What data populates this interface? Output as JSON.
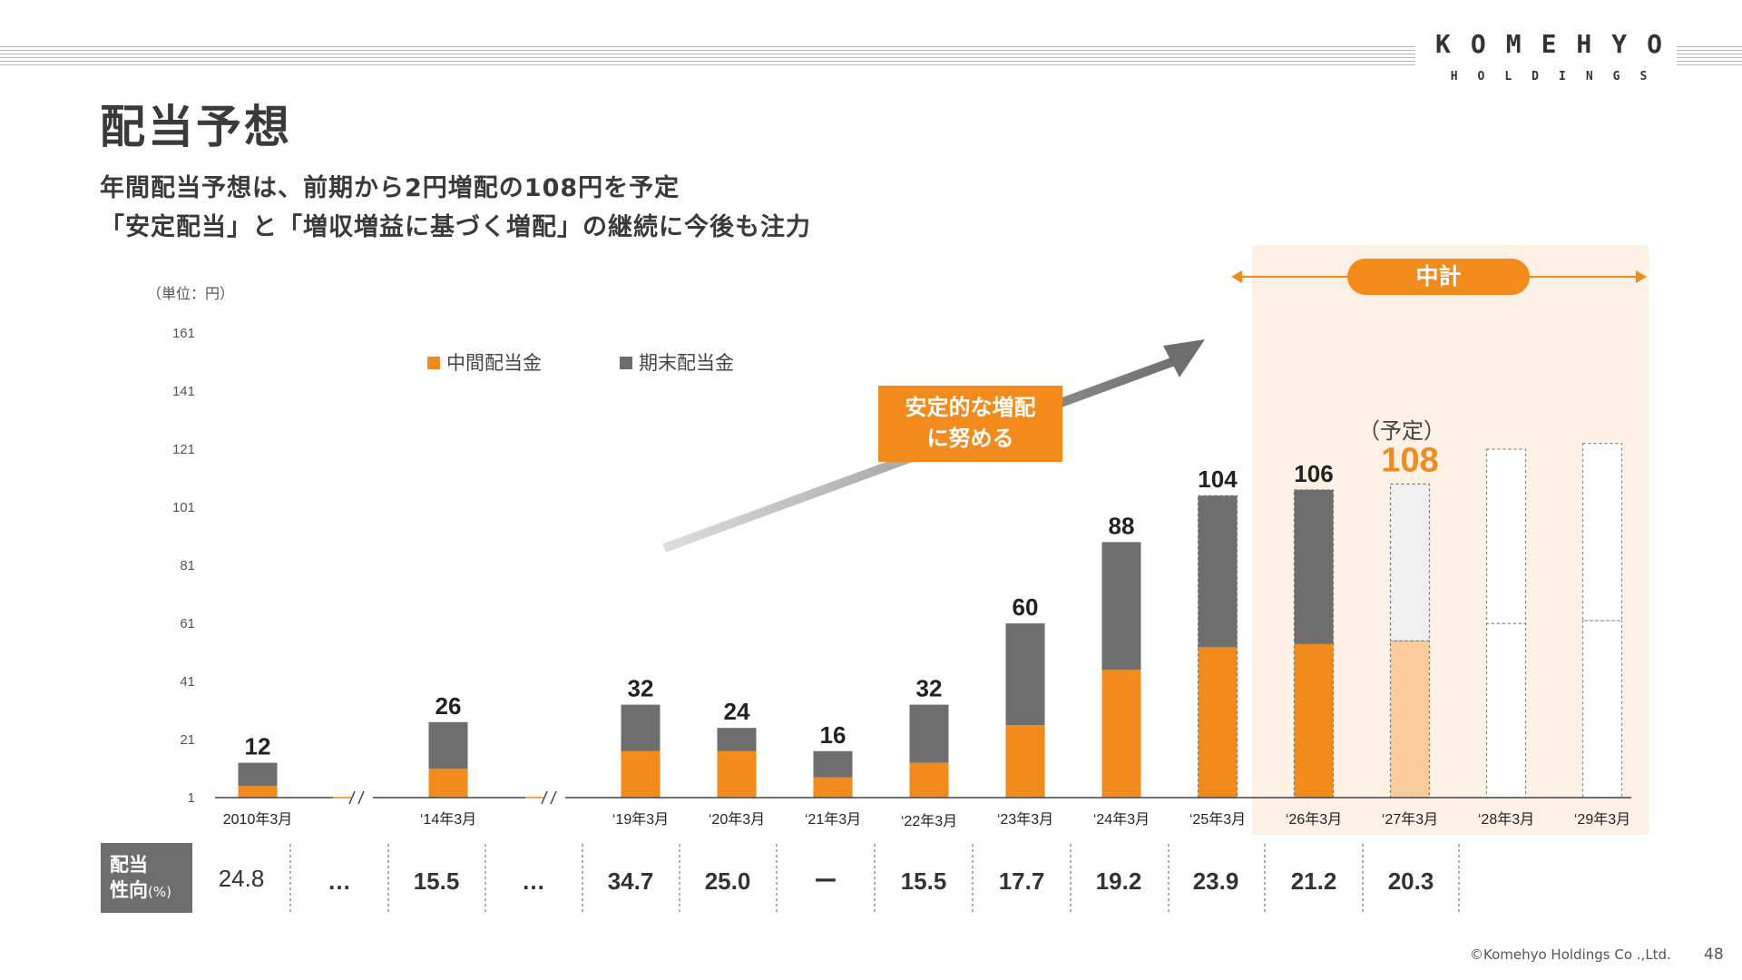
{
  "logo": {
    "line1": "KOMEHYO",
    "line2": "HOLDINGS"
  },
  "page_title": "配当予想",
  "subtitle_lines": [
    "年間配当予想は、前期から2円増配の108円を予定",
    "「安定配当」と「増収増益に基づく増配」の継続に今後も注力"
  ],
  "unit_label": "（単位：円）",
  "callout": {
    "line1": "安定的な増配",
    "line2": "に努める"
  },
  "plan_label": "中計",
  "forecast_label": "（予定）",
  "payout": {
    "label_line1": "配当",
    "label_line2": "性向",
    "label_unit": "(%)",
    "values": [
      "24.8",
      "…",
      "15.5",
      "…",
      "34.7",
      "25.0",
      "ー",
      "15.5",
      "17.7",
      "19.2",
      "23.9",
      "21.2",
      "20.3"
    ]
  },
  "footer": {
    "copyright": "©Komehyo Holdings Co .,Ltd.",
    "page_number": "48"
  },
  "colors": {
    "interim": "#f28a1c",
    "year_end": "#6e6e6e",
    "forecast_interim": "#fbcb9b",
    "forecast_year_end": "#efefef",
    "plan_bg": "#fdf0e4"
  },
  "chart_data": {
    "type": "bar",
    "stacked": true,
    "categories": [
      "2010年3月",
      "‘14年3月",
      "‘19年3月",
      "‘20年3月",
      "‘21年3月",
      "‘22年3月",
      "‘23年3月",
      "‘24年3月",
      "‘25年3月",
      "‘26年3月",
      "‘27年3月",
      "‘28年3月",
      "‘29年3月"
    ],
    "series": [
      {
        "name": "中間配当金",
        "values": [
          4,
          10,
          16,
          16,
          7,
          12,
          25,
          44,
          52,
          53,
          54,
          null,
          null
        ]
      },
      {
        "name": "期末配当金",
        "values": [
          8,
          16,
          16,
          8,
          9,
          20,
          35,
          44,
          52,
          53,
          54,
          null,
          null
        ]
      }
    ],
    "totals": [
      12,
      26,
      32,
      24,
      16,
      32,
      60,
      88,
      104,
      106,
      108,
      null,
      null
    ],
    "total_labels": [
      "12",
      "26",
      "32",
      "24",
      "16",
      "32",
      "60",
      "88",
      "104",
      "106",
      "108",
      "",
      ""
    ],
    "forecast_categories": [
      "‘27年3月"
    ],
    "future_placeholder_heights": [
      null,
      null,
      null,
      null,
      null,
      null,
      null,
      null,
      null,
      null,
      null,
      120,
      122
    ],
    "yticks": [
      "161",
      "141",
      "121",
      "101",
      "81",
      "61",
      "41",
      "21",
      "1"
    ],
    "ylim": [
      1,
      161
    ],
    "axis_breaks_after": [
      "2010年3月",
      "‘14年3月"
    ],
    "legend_position": "top"
  }
}
